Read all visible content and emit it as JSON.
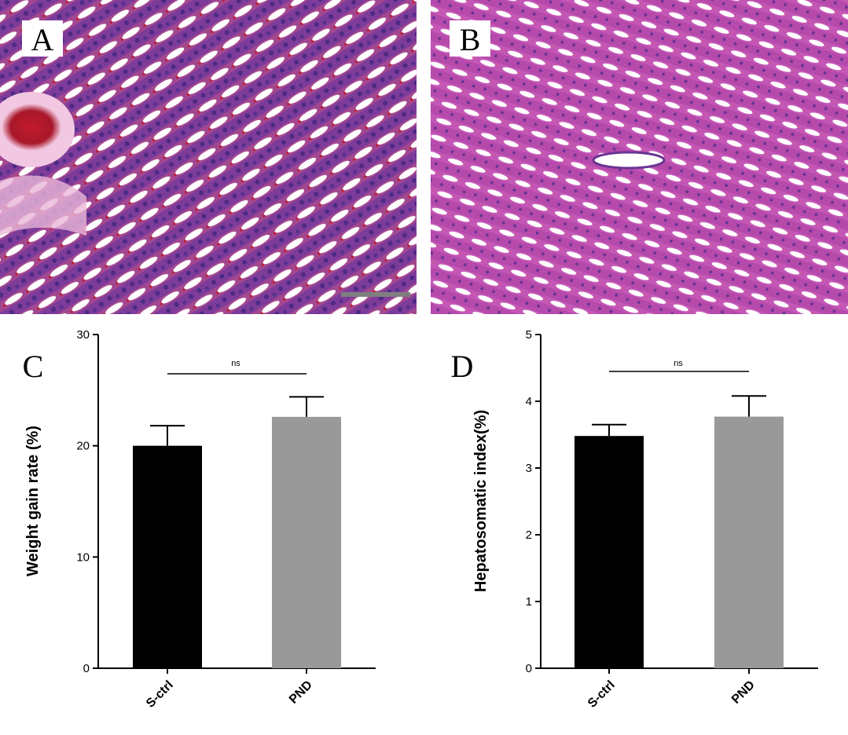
{
  "panels": {
    "a": {
      "letter": "A"
    },
    "b": {
      "letter": "B"
    },
    "c": {
      "letter": "C"
    },
    "d": {
      "letter": "D"
    }
  },
  "colors": {
    "tissue_stroma": "#d25fc0",
    "tissue_nuclei": "#55308c",
    "tissue_sinusoid": "#ffffff",
    "blood": "#c21b2c",
    "bar_s_ctrl": "#000000",
    "bar_pnd": "#999999"
  },
  "chart_data": [
    {
      "panel": "C",
      "type": "bar",
      "categories": [
        "S-ctrl",
        "PND"
      ],
      "values": [
        20.0,
        22.6
      ],
      "errors": [
        1.8,
        1.8
      ],
      "ylabel": "Weight gain rate (%)",
      "ylim": [
        0,
        30
      ],
      "yticks": [
        0,
        10,
        20,
        30
      ],
      "significance": "ns",
      "grid": false,
      "bar_colors": [
        "#000000",
        "#999999"
      ]
    },
    {
      "panel": "D",
      "type": "bar",
      "categories": [
        "S-ctrl",
        "PND"
      ],
      "values": [
        3.48,
        3.77
      ],
      "errors": [
        0.17,
        0.31
      ],
      "ylabel": "Hepatosomatic index(%)",
      "ylim": [
        0,
        5
      ],
      "yticks": [
        0,
        1,
        2,
        3,
        4,
        5
      ],
      "significance": "ns",
      "grid": false,
      "bar_colors": [
        "#000000",
        "#999999"
      ]
    }
  ]
}
